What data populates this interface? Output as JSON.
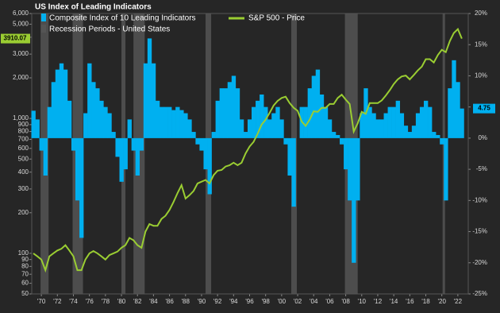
{
  "chart_data": {
    "type": "bar-line",
    "title": "US Index of Leading Indicators",
    "x": [
      1969,
      1969.5,
      1970,
      1970.5,
      1971,
      1971.5,
      1972,
      1972.5,
      1973,
      1973.5,
      1974,
      1974.5,
      1975,
      1975.5,
      1976,
      1976.5,
      1977,
      1977.5,
      1978,
      1978.5,
      1979,
      1979.5,
      1980,
      1980.5,
      1981,
      1981.5,
      1982,
      1982.5,
      1983,
      1983.5,
      1984,
      1984.5,
      1985,
      1985.5,
      1986,
      1986.5,
      1987,
      1987.5,
      1988,
      1988.5,
      1989,
      1989.5,
      1990,
      1990.5,
      1991,
      1991.5,
      1992,
      1992.5,
      1993,
      1993.5,
      1994,
      1994.5,
      1995,
      1995.5,
      1996,
      1996.5,
      1997,
      1997.5,
      1998,
      1998.5,
      1999,
      1999.5,
      2000,
      2000.5,
      2001,
      2001.5,
      2002,
      2002.5,
      2003,
      2003.5,
      2004,
      2004.5,
      2005,
      2005.5,
      2006,
      2006.5,
      2007,
      2007.5,
      2008,
      2008.5,
      2009,
      2009.5,
      2010,
      2010.5,
      2011,
      2011.5,
      2012,
      2012.5,
      2013,
      2013.5,
      2014,
      2014.5,
      2015,
      2015.5,
      2016,
      2016.5,
      2017,
      2017.5,
      2018,
      2018.5,
      2019,
      2019.5,
      2020,
      2020.5,
      2021,
      2021.5,
      2022,
      2022.5
    ],
    "series": [
      {
        "name": "Composite Index of 10 Leading Indicators",
        "color": "#00b0f0",
        "axis": "y2",
        "type": "bar",
        "values": [
          4.4,
          3,
          -2,
          -6,
          5,
          9,
          11,
          12,
          11,
          6,
          -2,
          -10,
          -16,
          4,
          12,
          9,
          8,
          6,
          5,
          4,
          1,
          -3,
          -7,
          -5,
          3,
          -2,
          -6,
          -2,
          12,
          16,
          12,
          6,
          5,
          5,
          5,
          4.5,
          5,
          4.5,
          4,
          3,
          1,
          -1,
          -2,
          -5,
          -9,
          1,
          6,
          8,
          8,
          9,
          10,
          8,
          3,
          1,
          3,
          5,
          6,
          7,
          5,
          3,
          4,
          5,
          3,
          -1,
          -6,
          -11,
          0,
          5,
          5,
          8,
          10,
          11,
          7,
          5,
          3,
          1,
          0.5,
          -1,
          -5,
          -10,
          -20,
          -10,
          4,
          8,
          5,
          4,
          3,
          3,
          4,
          5,
          5,
          6,
          4,
          2,
          1,
          2,
          4,
          5,
          6,
          5,
          1,
          0.5,
          -1,
          -10,
          8,
          12.5,
          9,
          4.75
        ]
      },
      {
        "name": "S&P 500 - Price",
        "color": "#9acd32",
        "type": "line",
        "values": [
          100,
          95,
          90,
          75,
          95,
          100,
          105,
          108,
          115,
          105,
          95,
          75,
          75,
          90,
          100,
          104,
          100,
          95,
          90,
          97,
          100,
          103,
          110,
          115,
          130,
          125,
          115,
          110,
          145,
          165,
          160,
          160,
          180,
          190,
          210,
          240,
          280,
          320,
          255,
          270,
          290,
          330,
          340,
          350,
          330,
          380,
          410,
          415,
          440,
          450,
          470,
          450,
          470,
          550,
          620,
          670,
          770,
          900,
          980,
          1100,
          1250,
          1350,
          1420,
          1450,
          1300,
          1200,
          1140,
          950,
          880,
          980,
          1130,
          1120,
          1200,
          1200,
          1280,
          1280,
          1420,
          1500,
          1380,
          1280,
          800,
          920,
          1120,
          1080,
          1300,
          1300,
          1300,
          1360,
          1480,
          1620,
          1800,
          1950,
          2050,
          2080,
          1950,
          2100,
          2270,
          2420,
          2750,
          2750,
          2600,
          2950,
          3230,
          3100,
          3750,
          4300,
          4600,
          3910.07
        ]
      }
    ],
    "recessions": {
      "name": "Recession Periods - United States",
      "color": "#555555",
      "periods": [
        [
          1969.9,
          1970.9
        ],
        [
          1973.9,
          1975.2
        ],
        [
          1980.0,
          1980.5
        ],
        [
          1981.5,
          1982.9
        ],
        [
          1990.5,
          1991.2
        ],
        [
          2001.2,
          2001.9
        ],
        [
          2007.9,
          2009.5
        ],
        [
          2020.1,
          2020.4
        ]
      ]
    },
    "xlim": [
      1968.8,
      2023.3
    ],
    "xticks": [
      {
        "value": 1970,
        "label": "'70"
      },
      {
        "value": 1972,
        "label": "'72"
      },
      {
        "value": 1974,
        "label": "'74"
      },
      {
        "value": 1976,
        "label": "'76"
      },
      {
        "value": 1978,
        "label": "'78"
      },
      {
        "value": 1980,
        "label": "'80"
      },
      {
        "value": 1982,
        "label": "'82"
      },
      {
        "value": 1984,
        "label": "'84"
      },
      {
        "value": 1986,
        "label": "'86"
      },
      {
        "value": 1988,
        "label": "'88"
      },
      {
        "value": 1990,
        "label": "'90"
      },
      {
        "value": 1992,
        "label": "'92"
      },
      {
        "value": 1994,
        "label": "'94"
      },
      {
        "value": 1996,
        "label": "'96"
      },
      {
        "value": 1998,
        "label": "'98"
      },
      {
        "value": 2000,
        "label": "'00"
      },
      {
        "value": 2002,
        "label": "'02"
      },
      {
        "value": 2004,
        "label": "'04"
      },
      {
        "value": 2006,
        "label": "'06"
      },
      {
        "value": 2008,
        "label": "'08"
      },
      {
        "value": 2010,
        "label": "'10"
      },
      {
        "value": 2012,
        "label": "'12"
      },
      {
        "value": 2014,
        "label": "'14"
      },
      {
        "value": 2016,
        "label": "'16"
      },
      {
        "value": 2018,
        "label": "'18"
      },
      {
        "value": 2020,
        "label": "'20"
      },
      {
        "value": 2022,
        "label": "'22"
      }
    ],
    "yscale": "log",
    "ylim": [
      50,
      6000
    ],
    "yticks": [
      50,
      60,
      70,
      80,
      90,
      100,
      200,
      300,
      400,
      500,
      600,
      700,
      800,
      900,
      {
        "value": 1000,
        "label": "1,000"
      },
      {
        "value": 2000,
        "label": "2,000"
      },
      {
        "value": 3000,
        "label": "3,000"
      },
      {
        "value": 4000,
        "label": "4,000"
      },
      {
        "value": 5000,
        "label": "5,000"
      },
      {
        "value": 6000,
        "label": "6,000"
      }
    ],
    "y2lim": [
      -25,
      20
    ],
    "y2ticks": [
      {
        "value": -25,
        "label": "-25%"
      },
      {
        "value": -20,
        "label": "-20%"
      },
      {
        "value": -15,
        "label": "-15%"
      },
      {
        "value": -10,
        "label": "-10%"
      },
      {
        "value": -5,
        "label": "-5%"
      },
      {
        "value": 0,
        "label": "0%"
      },
      {
        "value": 5,
        "label": "5%"
      },
      {
        "value": 10,
        "label": "10%"
      },
      {
        "value": 15,
        "label": "15%"
      },
      {
        "value": 20,
        "label": "20%"
      }
    ],
    "grid": false,
    "legend": "top-left"
  }
}
